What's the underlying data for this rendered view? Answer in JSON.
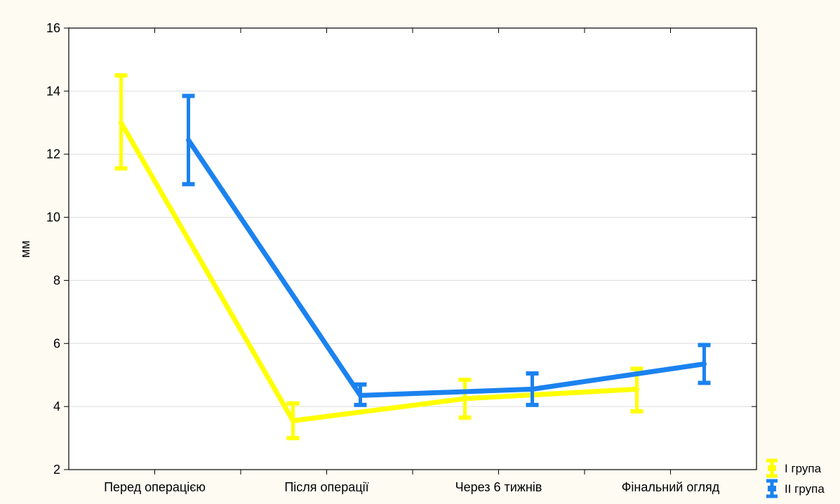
{
  "chart_data": {
    "type": "line",
    "title": "",
    "xlabel": "",
    "ylabel": "мм",
    "ylim": [
      2,
      16
    ],
    "yticks": [
      "2",
      "4",
      "6",
      "8",
      "10",
      "12",
      "14",
      "16"
    ],
    "categories": [
      "Перед операцією",
      "Після операції",
      "Через 6 тижнів",
      "Фінальний огляд"
    ],
    "grid": true,
    "legend_position": "bottom-right",
    "series": [
      {
        "name": "І група",
        "color": "#ffff00",
        "values": [
          13.0,
          3.55,
          4.25,
          4.55
        ],
        "lower": [
          11.55,
          3.0,
          3.65,
          3.85
        ],
        "upper": [
          14.5,
          4.1,
          4.85,
          5.2
        ]
      },
      {
        "name": "ІІ група",
        "color": "#1b82f0",
        "values": [
          12.45,
          4.35,
          4.55,
          5.35
        ],
        "lower": [
          11.05,
          4.05,
          4.05,
          4.75
        ],
        "upper": [
          13.85,
          4.7,
          5.05,
          5.95
        ]
      }
    ]
  }
}
